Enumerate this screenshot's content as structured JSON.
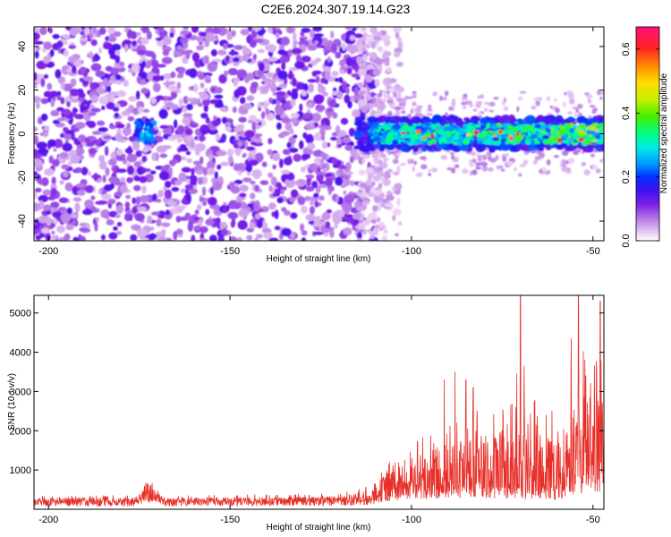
{
  "title": "C2E6.2024.307.19.14.G23",
  "chart_data": [
    {
      "type": "heatmap",
      "xlabel": "Height of straight line (km)",
      "ylabel": "Frequency (Hz)",
      "xlim": [
        -204,
        -47
      ],
      "ylim": [
        -49,
        49
      ],
      "x_ticks": [
        -200,
        -150,
        -100,
        -50
      ],
      "y_ticks": [
        -40,
        -20,
        0,
        20,
        40
      ],
      "colorbar": {
        "label": "Normalized spectral amplitude",
        "range": [
          0,
          0.67
        ],
        "ticks": [
          0,
          0.2,
          0.4,
          0.6
        ],
        "tick_labels": [
          "0.0",
          "0.2",
          "0.4",
          "0.6"
        ]
      },
      "regions": [
        {
          "x_range": [
            -204,
            -110
          ],
          "description": "broadband noise across all frequencies, amplitude about 0.05-0.2"
        },
        {
          "x_range": [
            -176,
            -171
          ],
          "freq_center": 1,
          "peak_amplitude": 0.3
        },
        {
          "x_range": [
            -115,
            -47
          ],
          "freq_center": 0,
          "freq_halfwidth": 6,
          "peak_amplitude": 0.67
        }
      ]
    },
    {
      "type": "line",
      "xlabel": "Height of straight line (km)",
      "ylabel": "SNR (10 * v/v)",
      "xlim": [
        -204,
        -47
      ],
      "ylim": [
        0,
        5450
      ],
      "x_ticks": [
        -200,
        -150,
        -100,
        -50
      ],
      "y_ticks": [
        1000,
        2000,
        3000,
        4000,
        5000
      ],
      "color": "#e8302a",
      "envelope": [
        {
          "x": -204,
          "base": 200,
          "amp": 140
        },
        {
          "x": -176,
          "base": 200,
          "amp": 160
        },
        {
          "x": -173,
          "base": 450,
          "amp": 400
        },
        {
          "x": -168,
          "base": 200,
          "amp": 150
        },
        {
          "x": -120,
          "base": 220,
          "amp": 180
        },
        {
          "x": -110,
          "base": 300,
          "amp": 350
        },
        {
          "x": -108,
          "base": 500,
          "amp": 700
        },
        {
          "x": -100,
          "base": 600,
          "amp": 1000
        },
        {
          "x": -90,
          "base": 700,
          "amp": 1800
        },
        {
          "x": -80,
          "base": 650,
          "amp": 1900
        },
        {
          "x": -70,
          "base": 650,
          "amp": 2300
        },
        {
          "x": -60,
          "base": 600,
          "amp": 2000
        },
        {
          "x": -55,
          "base": 900,
          "amp": 3000
        },
        {
          "x": -50,
          "base": 1200,
          "amp": 3200
        },
        {
          "x": -47,
          "base": 1000,
          "amp": 2800
        }
      ],
      "peaks": [
        {
          "x": -91,
          "y": 3300
        },
        {
          "x": -88,
          "y": 3500
        },
        {
          "x": -85,
          "y": 3300
        },
        {
          "x": -83,
          "y": 3100
        },
        {
          "x": -71,
          "y": 3450
        },
        {
          "x": -70,
          "y": 5450
        },
        {
          "x": -69,
          "y": 3650
        },
        {
          "x": -56,
          "y": 4350
        },
        {
          "x": -54,
          "y": 5450
        },
        {
          "x": -52,
          "y": 3400
        },
        {
          "x": -48,
          "y": 5300
        }
      ]
    }
  ]
}
